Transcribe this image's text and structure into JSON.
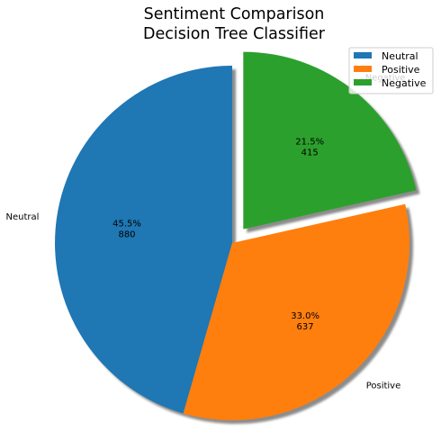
{
  "chart_data": {
    "type": "pie",
    "title": "Sentiment Comparison\nDecision Tree Classifier",
    "title_lines": [
      "Sentiment Comparison",
      "Decision Tree Classifier"
    ],
    "slices": [
      {
        "label": "Neutral",
        "value": 880,
        "percent_text": "45.5%",
        "color": "#1f77b4",
        "explode": false
      },
      {
        "label": "Positive",
        "value": 637,
        "percent_text": "33.0%",
        "color": "#ff7f0e",
        "explode": false
      },
      {
        "label": "Negative",
        "value": 415,
        "percent_text": "21.5%",
        "color": "#2ca02c",
        "explode": true
      }
    ],
    "start_angle_deg": 90,
    "direction": "counterclockwise",
    "shadow": true,
    "legend": {
      "position": "top-right",
      "entries": [
        "Neutral",
        "Positive",
        "Negative"
      ]
    }
  }
}
